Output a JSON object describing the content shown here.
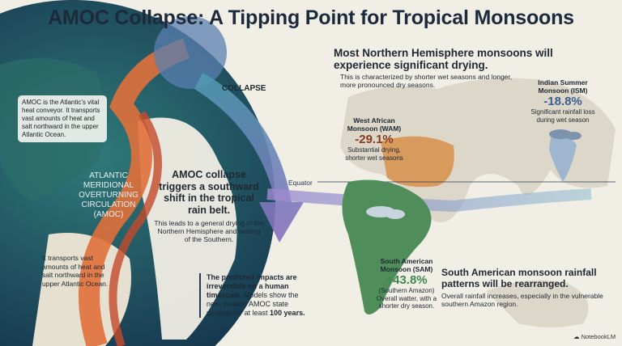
{
  "title": "AMOC Collapse: A Tipping Point for Tropical Monsoons",
  "left": {
    "info_box": "AMOC is the Atlantic's vital heat conveyor. It transports vast amounts of heat and salt northward in the upper Atlantic Ocean.",
    "collapse_label": "COLLAPSE",
    "amoc_label": "ATLANTIC MERIDIONAL OVERTURNING CIRCULATION (AMOC)",
    "transport_note": "It transports vast amounts of heat and salt northward in the upper Atlantic Ocean."
  },
  "center": {
    "shift_heading": "AMOC collapse triggers a southward shift in the tropical rain belt.",
    "shift_sub": "This leads to a general drying of the Northern Hemisphere and wetting of the Southern.",
    "impacts_bold": "The predicted impacts are irreversible on a human timescale.",
    "impacts_text": " Models show the new, weaker AMOC state persists for at least ",
    "impacts_years": "100 years."
  },
  "northern": {
    "heading": "Most Northern Hemisphere monsoons will experience significant drying.",
    "sub": "This is characterized by shorter wet seasons and longer, more pronounced dry seasons."
  },
  "monsoons": {
    "ism": {
      "name": "Indian Summer Monsoon (ISM)",
      "value": "-18.8%",
      "desc": "Significant rainfall loss during wet season",
      "color": "#3d5f8f"
    },
    "wam": {
      "name": "West African Monsoon (WAM)",
      "value": "-29.1%",
      "desc": "Substantial drying, shorter wet seasons",
      "color": "#8a3a1e"
    },
    "sam": {
      "name": "South American Monsoon (SAM)",
      "value": "+43.8%",
      "region": "(Southern Amazon)",
      "desc": "Overall watter, with a shorter dry season.",
      "color": "#3d8a4e"
    }
  },
  "equator_label": "Equator",
  "southern": {
    "heading": "South American monsoon rainfall patterns will be rearranged.",
    "sub": "Overall rainfall increases, especially in the vulnerable southern Amazon region."
  },
  "brand": "NotebookLM",
  "colors": {
    "background": "#f1eee5",
    "globe": "#1f4f5a",
    "current": "#e0703a",
    "collapse_arrow": "#7c68b0"
  }
}
